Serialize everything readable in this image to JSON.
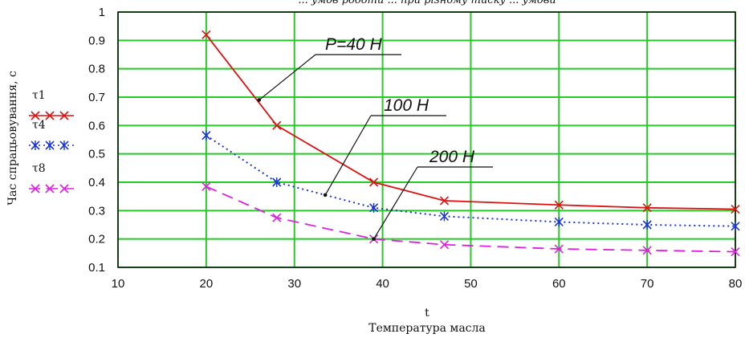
{
  "chart_data": {
    "type": "line",
    "top_text": "... умов роботи ... при різному тиску ... умови",
    "xlabel_symbol": "t",
    "xlabel": "Температура масла",
    "ylabel": "Час спрацьовування, с",
    "xlim": [
      10,
      80
    ],
    "ylim": [
      0.1,
      1
    ],
    "xticks": [
      10,
      20,
      30,
      40,
      50,
      60,
      70,
      80
    ],
    "yticks": [
      0.1,
      0.2,
      0.3,
      0.4,
      0.5,
      0.6,
      0.7,
      0.8,
      0.9,
      1
    ],
    "grid": true,
    "legend_position": "left",
    "series": [
      {
        "name": "τ1",
        "legend_symbols": "✕✕✕",
        "color": "#e01010",
        "dash": "solid",
        "x": [
          20,
          28,
          39,
          47,
          60,
          70,
          80
        ],
        "y": [
          0.92,
          0.6,
          0.4,
          0.335,
          0.32,
          0.31,
          0.305
        ]
      },
      {
        "name": "τ4",
        "legend_symbols": "✳ ✳ ✳",
        "color": "#1a36d8",
        "dash": "dotted",
        "x": [
          20,
          28,
          39,
          47,
          60,
          70,
          80
        ],
        "y": [
          0.565,
          0.4,
          0.31,
          0.28,
          0.26,
          0.25,
          0.245
        ]
      },
      {
        "name": "τ8",
        "legend_symbols": "✕✕ ✕",
        "color": "#e020e0",
        "dash": "dashed",
        "x": [
          20,
          28,
          39,
          47,
          60,
          70,
          80
        ],
        "y": [
          0.385,
          0.275,
          0.2,
          0.18,
          0.165,
          0.16,
          0.155
        ]
      }
    ],
    "annotations": [
      {
        "text": "P=40 H",
        "point": [
          26,
          0.69
        ]
      },
      {
        "text": "100 H",
        "point": [
          33.5,
          0.355
        ]
      },
      {
        "text": "200 H",
        "point": [
          39,
          0.2
        ]
      }
    ]
  }
}
